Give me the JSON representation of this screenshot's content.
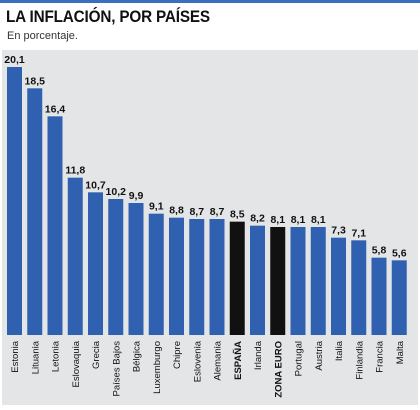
{
  "title": "LA INFLACIÓN, POR PAÍSES",
  "subtitle": "En porcentaje.",
  "colors": {
    "bar": "#2f61b0",
    "highlight": "#111111",
    "panel": "#e4e5e7",
    "accent": "#3a6fbf"
  },
  "chart_data": {
    "type": "bar",
    "title": "LA INFLACIÓN, POR PAÍSES",
    "subtitle": "En porcentaje.",
    "categories": [
      "Estonia",
      "Lituania",
      "Letonia",
      "Eslovaquia",
      "Grecia",
      "Países Bajos",
      "Bélgica",
      "Luxemburgo",
      "Chipre",
      "Eslovenia",
      "Alemania",
      "ESPAÑA",
      "Irlanda",
      "ZONA EURO",
      "Portugal",
      "Austria",
      "Italia",
      "Finlandia",
      "Francia",
      "Malta"
    ],
    "values": [
      20.1,
      18.5,
      16.4,
      11.8,
      10.7,
      10.2,
      9.9,
      9.1,
      8.8,
      8.7,
      8.7,
      8.5,
      8.2,
      8.1,
      8.1,
      8.1,
      7.3,
      7.1,
      5.8,
      5.6
    ],
    "value_labels": [
      "20,1",
      "18,5",
      "16,4",
      "11,8",
      "10,7",
      "10,2",
      "9,9",
      "9,1",
      "8,8",
      "8,7",
      "8,7",
      "8,5",
      "8,2",
      "8,1",
      "8,1",
      "8,1",
      "7,3",
      "7,1",
      "5,8",
      "5,6"
    ],
    "highlighted": [
      "ESPAÑA",
      "ZONA EURO"
    ],
    "ylim": [
      0,
      20.1
    ],
    "grid": false,
    "legend": "none"
  }
}
